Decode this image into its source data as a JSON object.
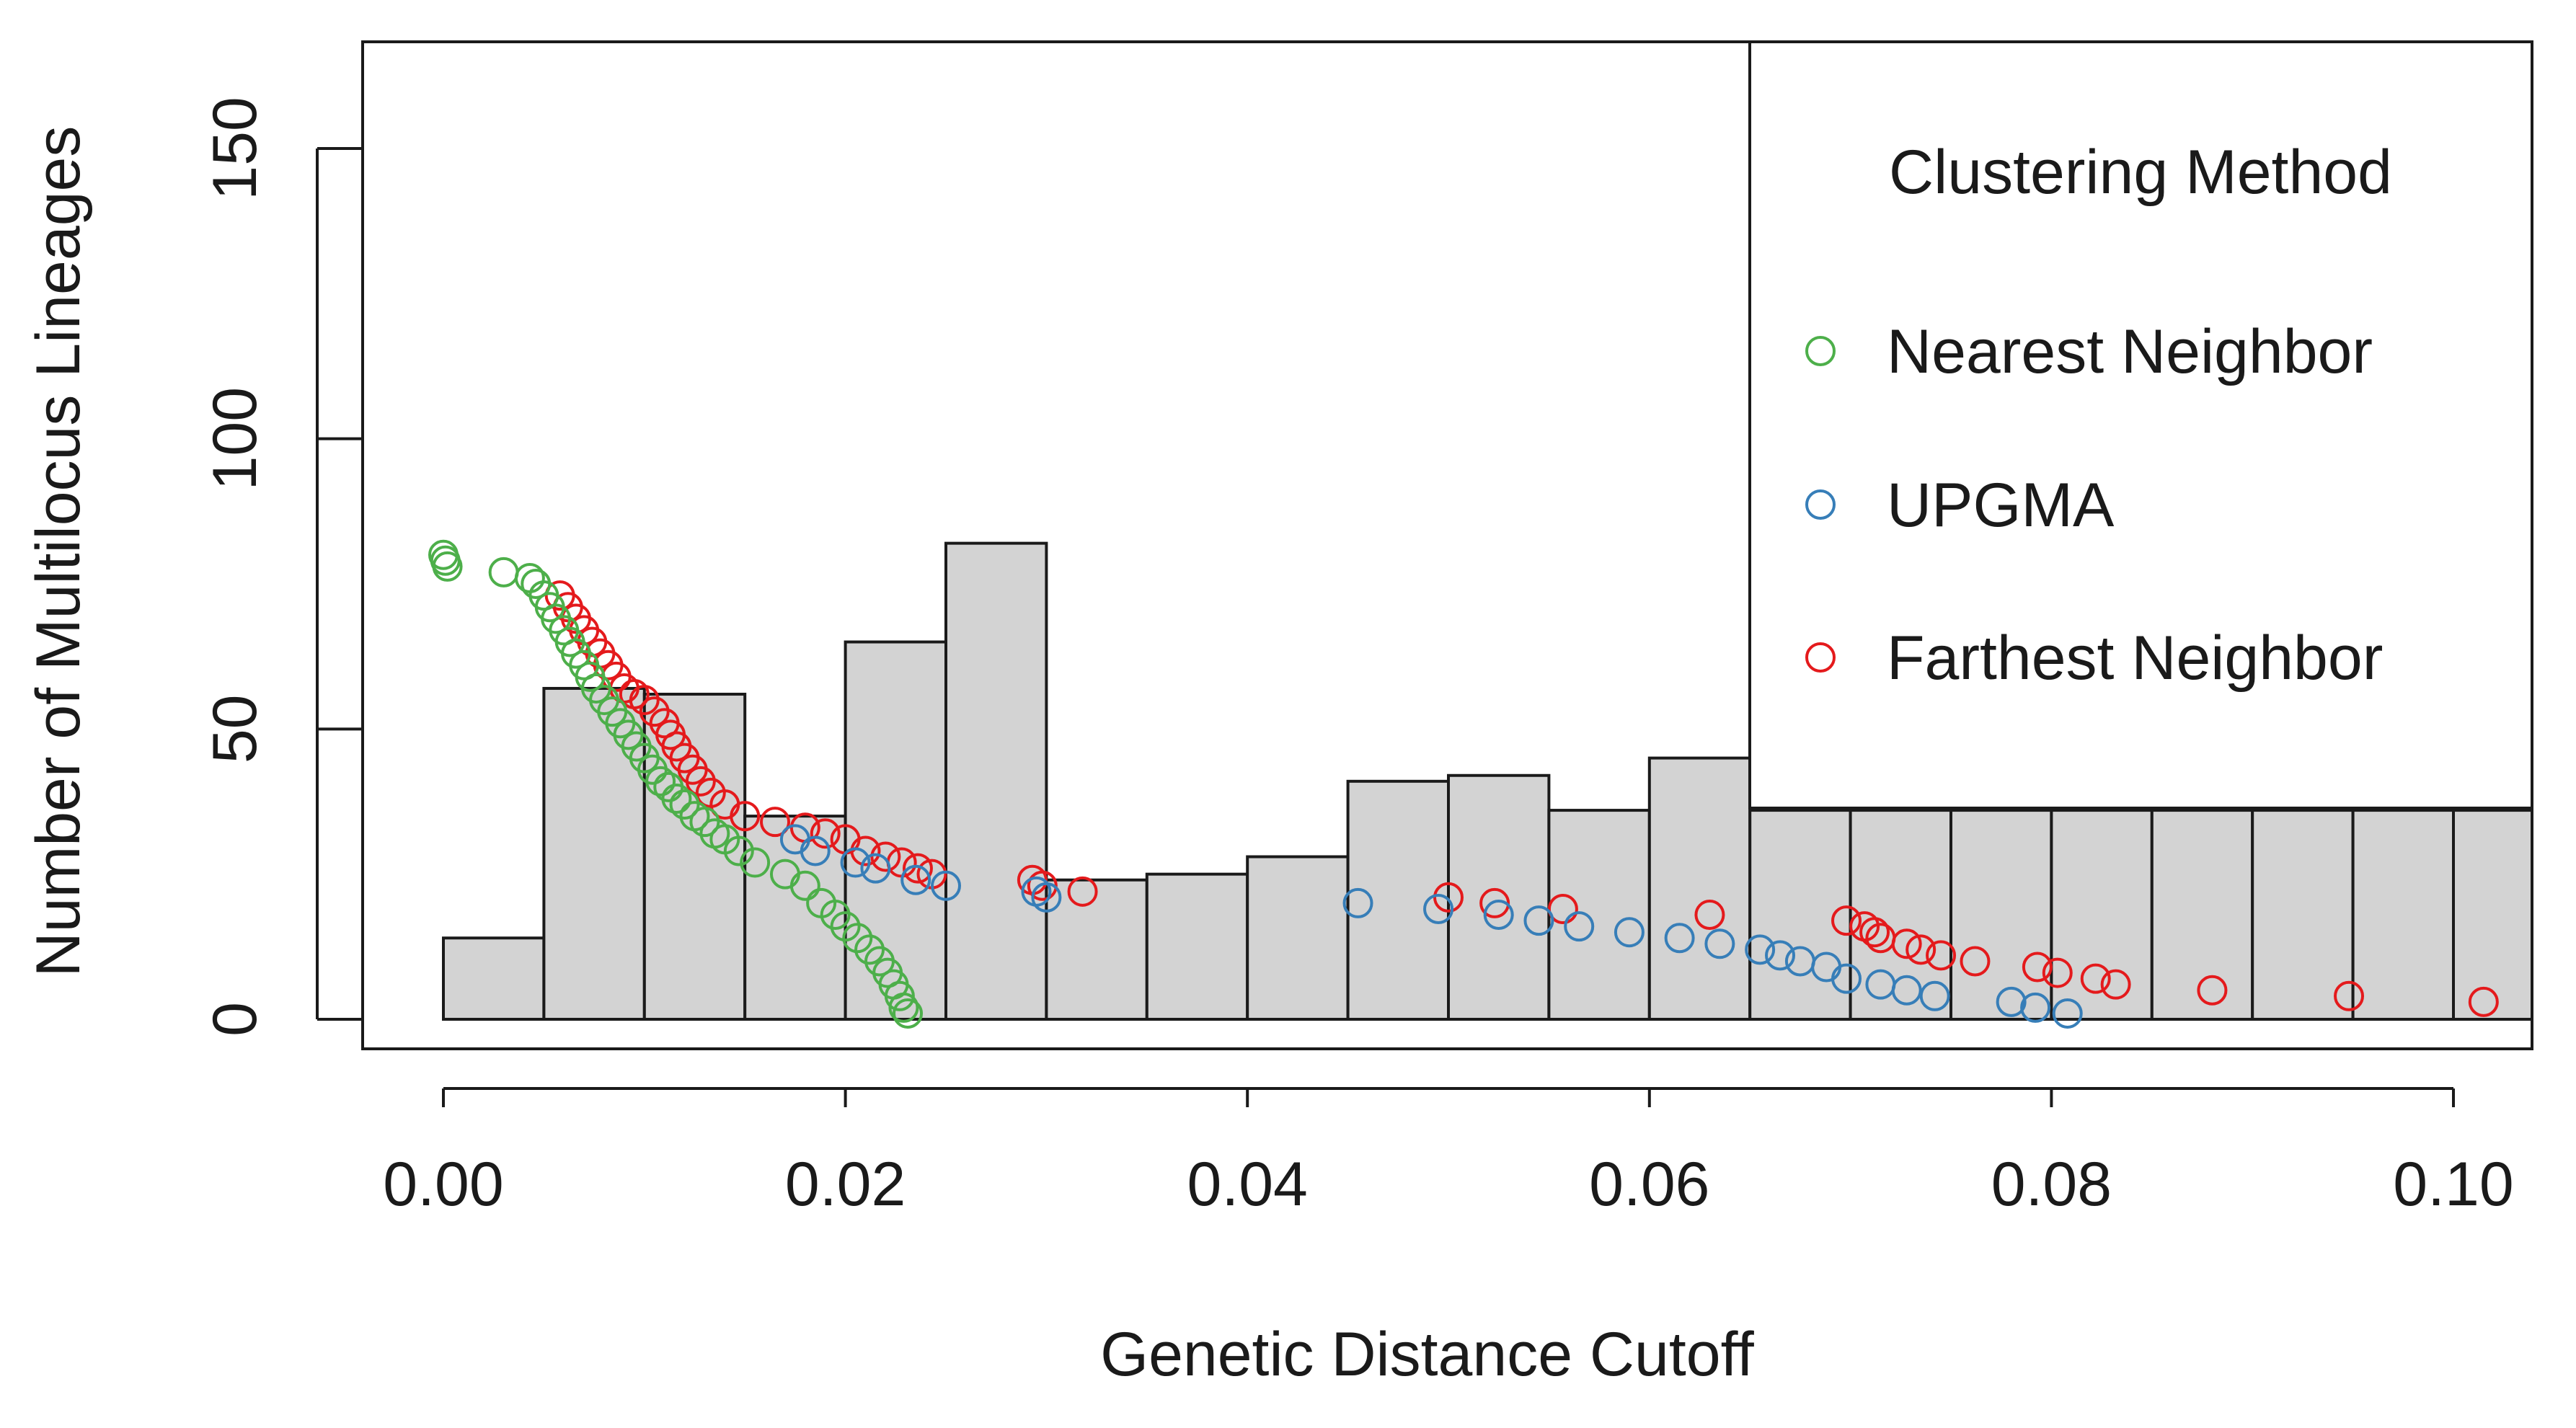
{
  "chart_data": {
    "type": "histogram+scatter",
    "title": "",
    "xlabel": "Genetic Distance Cutoff",
    "ylabel": "Number of Multilocus Lineages",
    "xlim": [
      -0.004,
      0.104
    ],
    "ylim": [
      -5,
      168
    ],
    "x_ticks": [
      0.0,
      0.02,
      0.04,
      0.06,
      0.08,
      0.1
    ],
    "x_tick_labels": [
      "0.00",
      "0.02",
      "0.04",
      "0.06",
      "0.08",
      "0.10"
    ],
    "y_ticks": [
      0,
      50,
      100,
      150
    ],
    "y_tick_labels": [
      "0",
      "50",
      "100",
      "150"
    ],
    "histogram": {
      "fill": "#d3d3d3",
      "stroke": "#1a1a1a",
      "bin_width": 0.005,
      "bins": [
        {
          "x0": 0.0,
          "x1": 0.005,
          "count": 14
        },
        {
          "x0": 0.005,
          "x1": 0.01,
          "count": 57
        },
        {
          "x0": 0.01,
          "x1": 0.015,
          "count": 56
        },
        {
          "x0": 0.015,
          "x1": 0.02,
          "count": 35
        },
        {
          "x0": 0.02,
          "x1": 0.025,
          "count": 65
        },
        {
          "x0": 0.025,
          "x1": 0.03,
          "count": 82
        },
        {
          "x0": 0.03,
          "x1": 0.035,
          "count": 24
        },
        {
          "x0": 0.035,
          "x1": 0.04,
          "count": 25
        },
        {
          "x0": 0.04,
          "x1": 0.045,
          "count": 28
        },
        {
          "x0": 0.045,
          "x1": 0.05,
          "count": 41
        },
        {
          "x0": 0.05,
          "x1": 0.055,
          "count": 42
        },
        {
          "x0": 0.055,
          "x1": 0.06,
          "count": 36
        },
        {
          "x0": 0.06,
          "x1": 0.065,
          "count": 45
        },
        {
          "x0": 0.065,
          "x1": 0.07,
          "count": 36
        },
        {
          "x0": 0.07,
          "x1": 0.075,
          "count": 36
        },
        {
          "x0": 0.075,
          "x1": 0.08,
          "count": 36
        },
        {
          "x0": 0.08,
          "x1": 0.085,
          "count": 36
        },
        {
          "x0": 0.085,
          "x1": 0.09,
          "count": 36
        },
        {
          "x0": 0.09,
          "x1": 0.095,
          "count": 36
        },
        {
          "x0": 0.095,
          "x1": 0.1,
          "count": 36
        },
        {
          "x0": 0.1,
          "x1": 0.105,
          "count": 36
        }
      ]
    },
    "series": [
      {
        "name": "Nearest Neighbor",
        "color": "#4daf4a",
        "points": [
          [
            0.0,
            80
          ],
          [
            0.0001,
            79
          ],
          [
            0.0002,
            78
          ],
          [
            0.003,
            77
          ],
          [
            0.0043,
            76
          ],
          [
            0.0046,
            75
          ],
          [
            0.005,
            73
          ],
          [
            0.0053,
            71
          ],
          [
            0.0056,
            69
          ],
          [
            0.006,
            67
          ],
          [
            0.0063,
            65
          ],
          [
            0.0066,
            63
          ],
          [
            0.007,
            61
          ],
          [
            0.0073,
            59
          ],
          [
            0.0076,
            57
          ],
          [
            0.008,
            55
          ],
          [
            0.0084,
            53
          ],
          [
            0.0088,
            51
          ],
          [
            0.0092,
            49
          ],
          [
            0.0096,
            47
          ],
          [
            0.01,
            45
          ],
          [
            0.0104,
            43
          ],
          [
            0.0108,
            41
          ],
          [
            0.0112,
            40
          ],
          [
            0.0116,
            38
          ],
          [
            0.012,
            37
          ],
          [
            0.0125,
            35
          ],
          [
            0.013,
            34
          ],
          [
            0.0135,
            32
          ],
          [
            0.014,
            31
          ],
          [
            0.0147,
            29
          ],
          [
            0.0155,
            27
          ],
          [
            0.017,
            25
          ],
          [
            0.018,
            23
          ],
          [
            0.0188,
            20
          ],
          [
            0.0195,
            18
          ],
          [
            0.02,
            16
          ],
          [
            0.0206,
            14
          ],
          [
            0.0212,
            12
          ],
          [
            0.0217,
            10
          ],
          [
            0.0221,
            8
          ],
          [
            0.0224,
            6
          ],
          [
            0.0227,
            4
          ],
          [
            0.0229,
            2
          ],
          [
            0.0231,
            1
          ]
        ]
      },
      {
        "name": "UPGMA",
        "color": "#377eb8",
        "points": [
          [
            0.0175,
            31
          ],
          [
            0.0185,
            29
          ],
          [
            0.0205,
            27
          ],
          [
            0.0215,
            26
          ],
          [
            0.0235,
            24
          ],
          [
            0.025,
            23
          ],
          [
            0.0295,
            22
          ],
          [
            0.03,
            21
          ],
          [
            0.0455,
            20
          ],
          [
            0.0495,
            19
          ],
          [
            0.0525,
            18
          ],
          [
            0.0545,
            17
          ],
          [
            0.0565,
            16
          ],
          [
            0.059,
            15
          ],
          [
            0.0615,
            14
          ],
          [
            0.0635,
            13
          ],
          [
            0.0655,
            12
          ],
          [
            0.0665,
            11
          ],
          [
            0.0675,
            10
          ],
          [
            0.0688,
            9
          ],
          [
            0.0698,
            7
          ],
          [
            0.0715,
            6
          ],
          [
            0.0728,
            5
          ],
          [
            0.0742,
            4
          ],
          [
            0.078,
            3
          ],
          [
            0.0792,
            2
          ],
          [
            0.0808,
            1
          ]
        ]
      },
      {
        "name": "Farthest Neighbor",
        "color": "#e41a1c",
        "points": [
          [
            0.0058,
            73
          ],
          [
            0.0062,
            71
          ],
          [
            0.0066,
            69
          ],
          [
            0.007,
            67
          ],
          [
            0.0074,
            65
          ],
          [
            0.0078,
            63
          ],
          [
            0.0082,
            61
          ],
          [
            0.0086,
            59
          ],
          [
            0.009,
            57
          ],
          [
            0.0095,
            56
          ],
          [
            0.01,
            55
          ],
          [
            0.0105,
            53
          ],
          [
            0.011,
            51
          ],
          [
            0.0113,
            49
          ],
          [
            0.0116,
            47
          ],
          [
            0.012,
            45
          ],
          [
            0.0124,
            43
          ],
          [
            0.0128,
            41
          ],
          [
            0.0133,
            39
          ],
          [
            0.014,
            37
          ],
          [
            0.015,
            35
          ],
          [
            0.0165,
            34
          ],
          [
            0.018,
            33
          ],
          [
            0.019,
            32
          ],
          [
            0.02,
            31
          ],
          [
            0.021,
            29
          ],
          [
            0.022,
            28
          ],
          [
            0.0228,
            27
          ],
          [
            0.0236,
            26
          ],
          [
            0.0243,
            25
          ],
          [
            0.0293,
            24
          ],
          [
            0.0298,
            23
          ],
          [
            0.0318,
            22
          ],
          [
            0.05,
            21
          ],
          [
            0.0523,
            20
          ],
          [
            0.0557,
            19
          ],
          [
            0.063,
            18
          ],
          [
            0.0698,
            17
          ],
          [
            0.0707,
            16
          ],
          [
            0.0712,
            15
          ],
          [
            0.0715,
            14
          ],
          [
            0.0728,
            13
          ],
          [
            0.0735,
            12
          ],
          [
            0.0745,
            11
          ],
          [
            0.0762,
            10
          ],
          [
            0.0793,
            9
          ],
          [
            0.0803,
            8
          ],
          [
            0.0822,
            7
          ],
          [
            0.0832,
            6
          ],
          [
            0.088,
            5
          ],
          [
            0.0948,
            4
          ],
          [
            0.1015,
            3
          ]
        ]
      }
    ],
    "legend": {
      "title": "Clustering Method",
      "position": "top-right",
      "entries": [
        "Nearest Neighbor",
        "UPGMA",
        "Farthest Neighbor"
      ]
    }
  }
}
